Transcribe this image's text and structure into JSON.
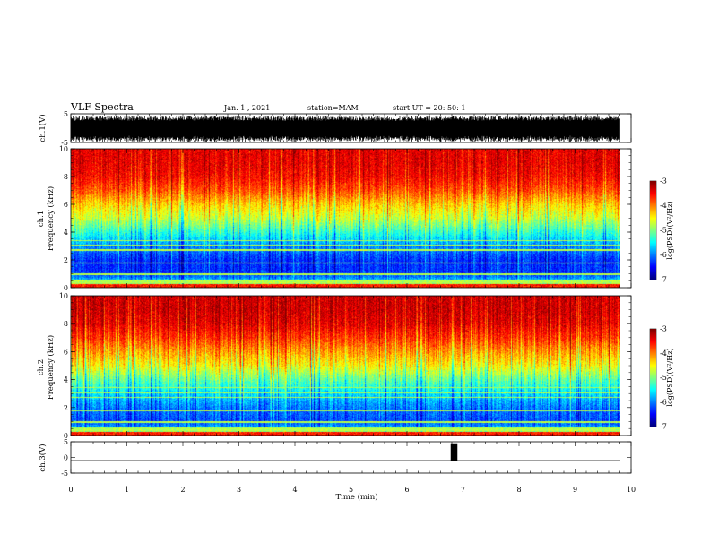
{
  "header": {
    "title": "VLF Spectra",
    "date": "Jan. 1 , 2021",
    "station": "station=MAM",
    "start_ut": "start UT =  20: 50: 1"
  },
  "chart_data": [
    {
      "type": "line",
      "panel": "ch1-waveform",
      "ylabel": "ch.1(V)",
      "xlim": [
        0,
        10
      ],
      "ylim": [
        -5,
        5
      ],
      "yticks": [
        "5",
        "-5"
      ],
      "data_end_min": 9.8,
      "description_of_trace": "dense VLF waveform filling approx -4 to 4 V across the record"
    },
    {
      "type": "heatmap",
      "panel": "ch1-spectrogram",
      "ylabel_line1": "ch.1",
      "ylabel_line2": "Frequency (kHz)",
      "xlim": [
        0,
        10
      ],
      "ylim": [
        0,
        10
      ],
      "yticks": [
        "0",
        "2",
        "4",
        "6",
        "8",
        "10"
      ],
      "data_end_min": 9.8,
      "colorbar": {
        "label": "log(PSD)(V²/Hz)",
        "range": [
          -7,
          -3
        ],
        "ticks": [
          "-3",
          "-4",
          "-5",
          "-6",
          "-7"
        ]
      },
      "power_profile_kHz_vs_logPSD": [
        [
          0,
          -3.4
        ],
        [
          0.4,
          -5.6
        ],
        [
          1,
          -6.3
        ],
        [
          2,
          -6.3
        ],
        [
          3,
          -5.9
        ],
        [
          4,
          -5.3
        ],
        [
          5,
          -4.7
        ],
        [
          6,
          -4.3
        ],
        [
          7,
          -3.8
        ],
        [
          8,
          -3.5
        ],
        [
          9,
          -3.4
        ],
        [
          10,
          -3.4
        ]
      ]
    },
    {
      "type": "heatmap",
      "panel": "ch2-spectrogram",
      "ylabel_line1": "ch.2",
      "ylabel_line2": "Frequency (kHz)",
      "xlim": [
        0,
        10
      ],
      "ylim": [
        0,
        10
      ],
      "yticks": [
        "0",
        "2",
        "4",
        "6",
        "8",
        "10"
      ],
      "data_end_min": 9.8,
      "colorbar": {
        "label": "log(PSD)(V²/Hz)",
        "range": [
          -7,
          -3
        ],
        "ticks": [
          "-3",
          "-4",
          "-5",
          "-6",
          "-7"
        ]
      },
      "power_profile_kHz_vs_logPSD": [
        [
          0,
          -3.4
        ],
        [
          0.4,
          -5.7
        ],
        [
          1,
          -6.2
        ],
        [
          2,
          -6.0
        ],
        [
          3,
          -5.6
        ],
        [
          4,
          -5.1
        ],
        [
          5,
          -4.5
        ],
        [
          6,
          -4.1
        ],
        [
          7,
          -3.7
        ],
        [
          8,
          -3.4
        ],
        [
          9,
          -3.3
        ],
        [
          10,
          -3.3
        ]
      ]
    },
    {
      "type": "line",
      "panel": "ch3-waveform",
      "ylabel": "ch.3(V)",
      "xlim": [
        0,
        10
      ],
      "ylim": [
        -5,
        5
      ],
      "yticks": [
        "5",
        "0",
        "-5"
      ],
      "baseline_V": -1,
      "pulse": {
        "t_start_min": 6.78,
        "t_end_min": 6.9,
        "ymin_V": -1,
        "ymax_V": 4.5
      },
      "xlabel": "Time (min)",
      "xticks": [
        "0",
        "1",
        "2",
        "3",
        "4",
        "5",
        "6",
        "7",
        "8",
        "9",
        "10"
      ]
    }
  ]
}
